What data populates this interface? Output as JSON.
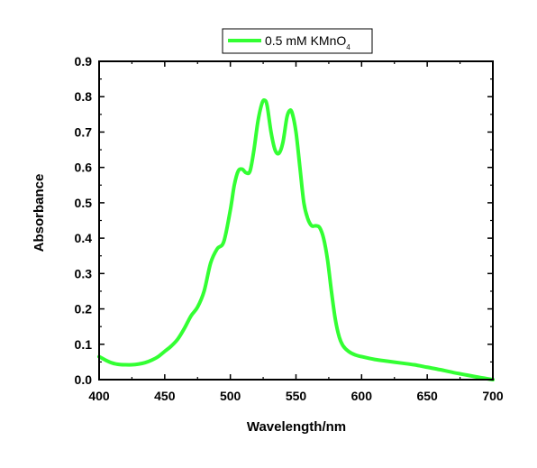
{
  "chart_data": {
    "type": "line",
    "title": "",
    "xlabel": "Wavelength/nm",
    "ylabel": "Absorbance",
    "xlim": [
      400,
      700
    ],
    "ylim": [
      0.0,
      0.9
    ],
    "x_ticks": [
      "400",
      "450",
      "500",
      "550",
      "600",
      "650",
      "700"
    ],
    "y_ticks": [
      "0.0",
      "0.1",
      "0.2",
      "0.3",
      "0.4",
      "0.5",
      "0.6",
      "0.7",
      "0.8",
      "0.9"
    ],
    "grid": false,
    "legend_position": "top-center",
    "legend": {
      "text": "0.5 mM KMnO",
      "subscript": "4"
    },
    "series": [
      {
        "name": "0.5 mM KMnO4",
        "color": "#33ff33",
        "x": [
          400,
          405,
          410,
          415,
          420,
          425,
          430,
          435,
          440,
          445,
          450,
          455,
          460,
          465,
          470,
          475,
          480,
          485,
          490,
          495,
          500,
          503,
          506,
          509,
          512,
          515,
          518,
          521,
          524,
          526,
          528,
          531,
          534,
          537,
          540,
          543,
          545,
          547,
          550,
          553,
          556,
          559,
          562,
          565,
          568,
          571,
          574,
          577,
          580,
          583,
          586,
          590,
          595,
          600,
          610,
          620,
          630,
          640,
          650,
          660,
          670,
          680,
          690,
          700
        ],
        "y": [
          0.065,
          0.055,
          0.047,
          0.043,
          0.042,
          0.042,
          0.044,
          0.048,
          0.055,
          0.065,
          0.08,
          0.095,
          0.115,
          0.145,
          0.18,
          0.205,
          0.25,
          0.33,
          0.37,
          0.39,
          0.48,
          0.55,
          0.59,
          0.595,
          0.585,
          0.59,
          0.65,
          0.73,
          0.78,
          0.79,
          0.775,
          0.7,
          0.65,
          0.64,
          0.67,
          0.74,
          0.76,
          0.755,
          0.7,
          0.6,
          0.5,
          0.455,
          0.435,
          0.435,
          0.43,
          0.4,
          0.34,
          0.25,
          0.17,
          0.12,
          0.095,
          0.08,
          0.07,
          0.065,
          0.057,
          0.052,
          0.047,
          0.042,
          0.035,
          0.028,
          0.02,
          0.013,
          0.006,
          0.0
        ]
      }
    ]
  }
}
